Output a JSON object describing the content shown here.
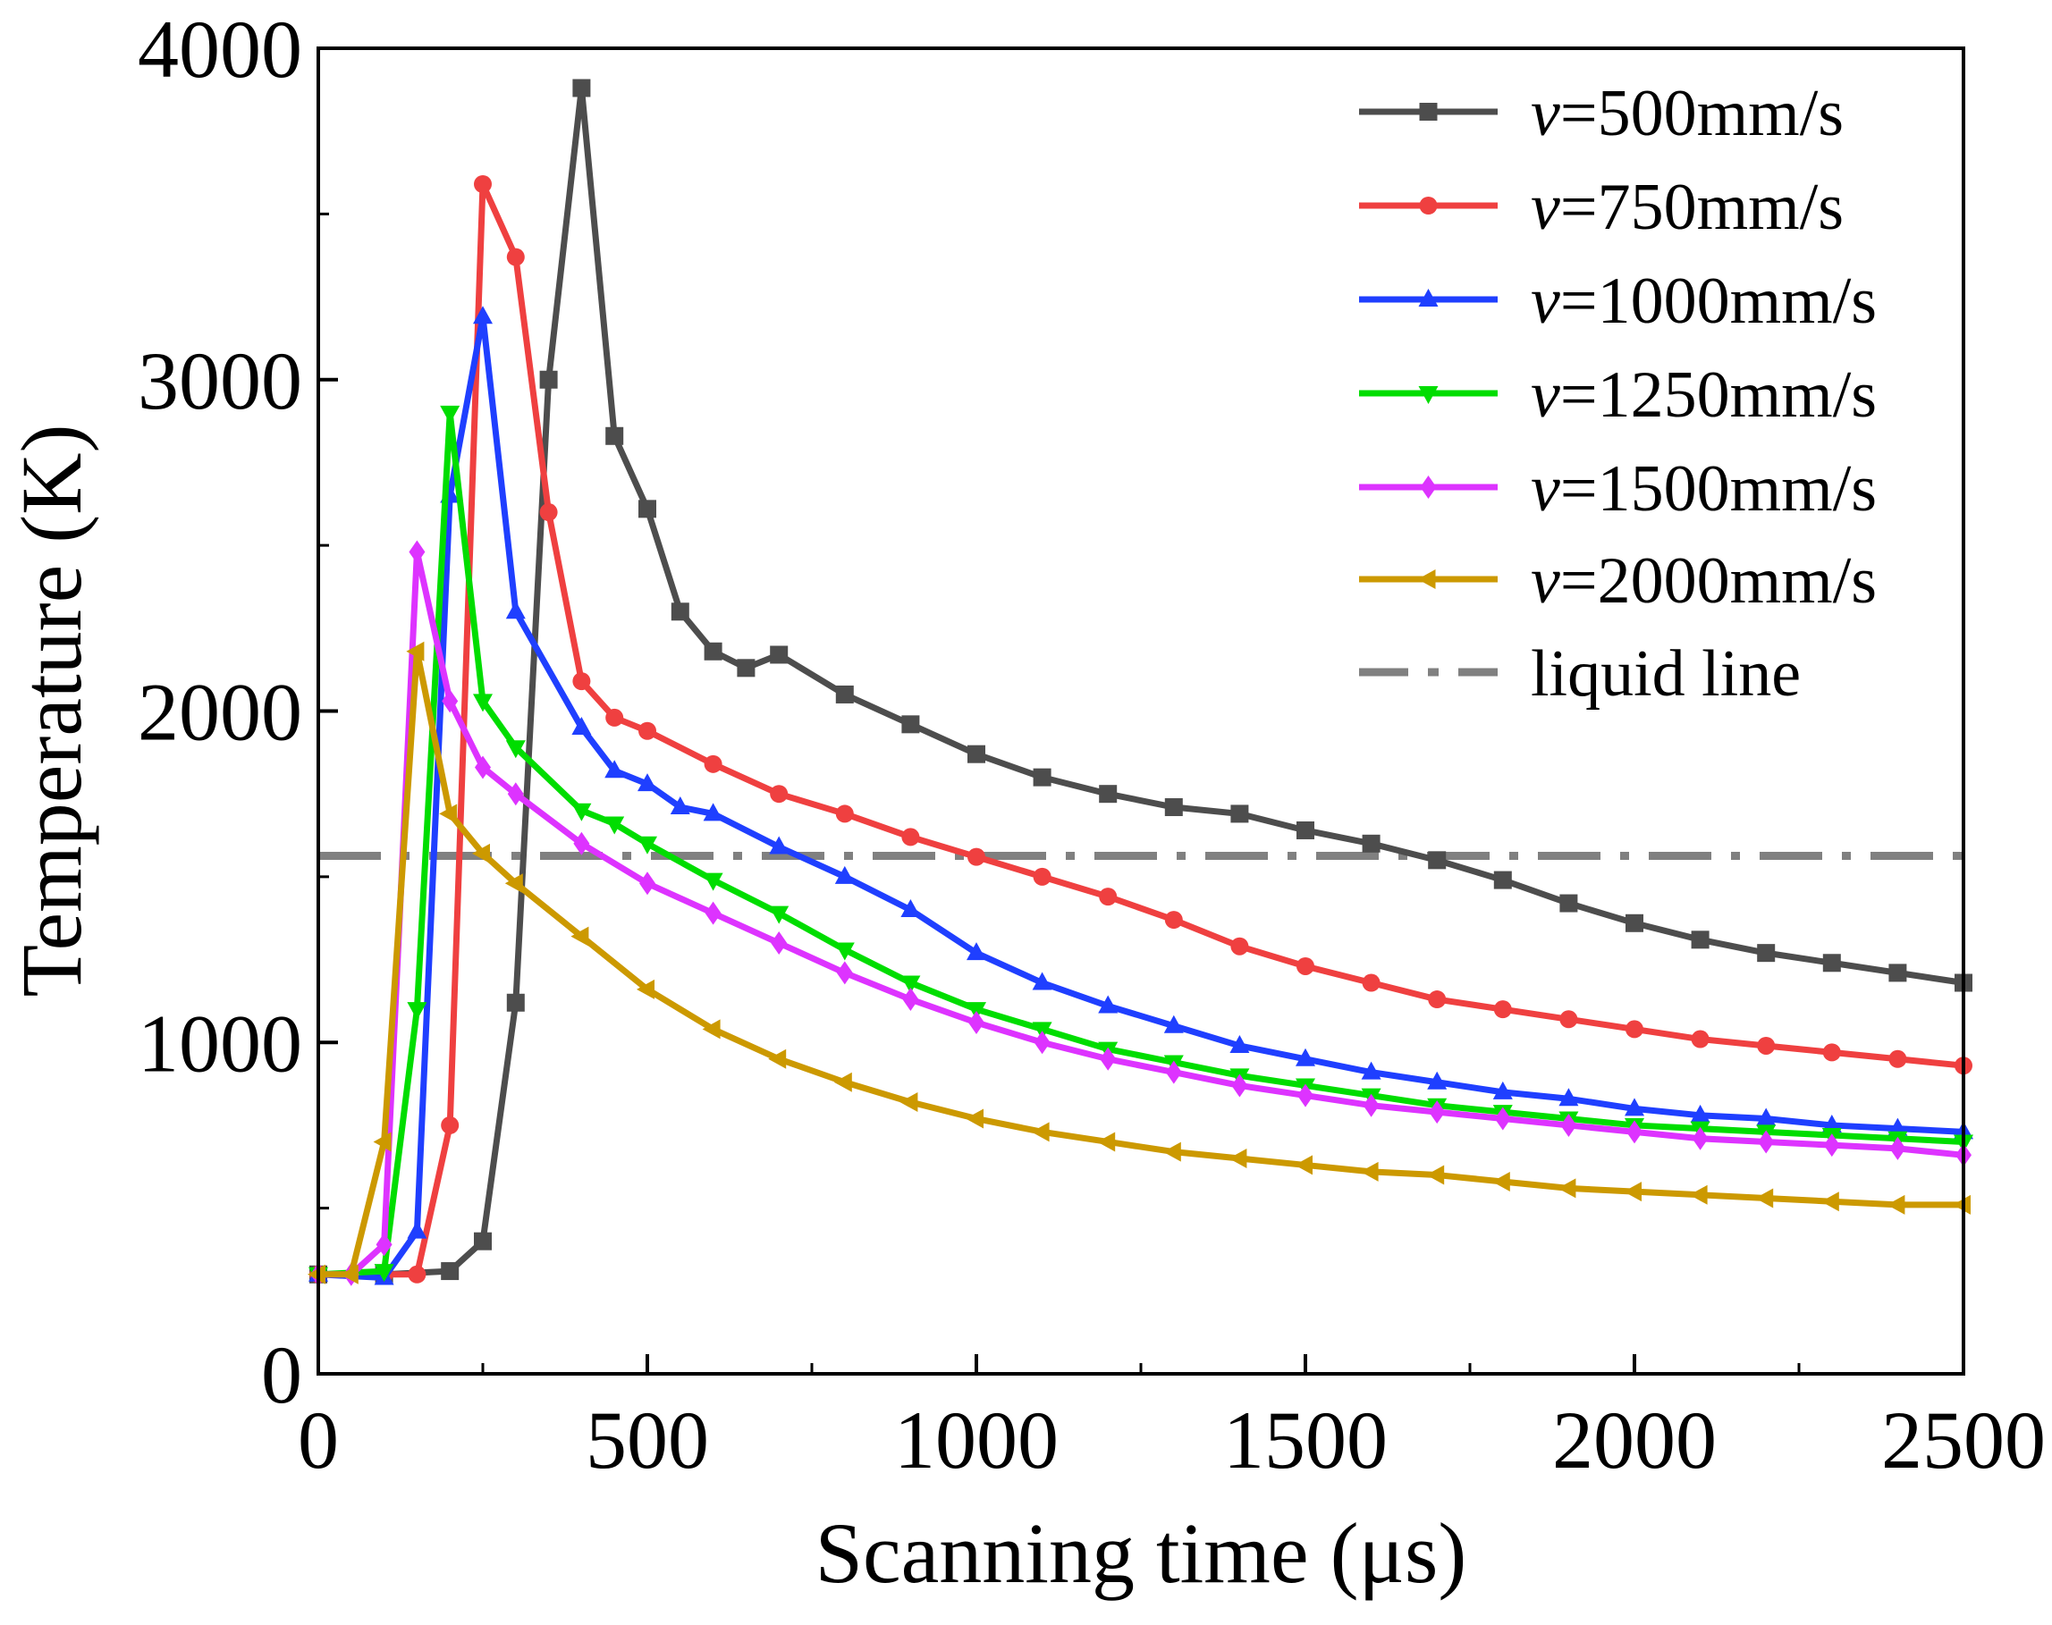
{
  "chart_data": {
    "type": "line",
    "title": "",
    "xlabel": "Scanning time (μs)",
    "ylabel": "Temperature (K)",
    "xlim": [
      0,
      2500
    ],
    "ylim": [
      0,
      4000
    ],
    "xticks": [
      "0",
      "500",
      "1000",
      "1500",
      "2000",
      "2500"
    ],
    "yticks": [
      "0",
      "1000",
      "2000",
      "3000",
      "4000"
    ],
    "grid": false,
    "legend_position": "top-right",
    "series": [
      {
        "name": "v=500mm/s",
        "prefix": "v",
        "suffix": "=500mm/s",
        "color": "#4d4d4d",
        "marker": "square",
        "x": [
          0,
          100,
          200,
          250,
          300,
          350,
          400,
          450,
          500,
          550,
          600,
          650,
          700,
          800,
          900,
          1000,
          1100,
          1200,
          1300,
          1400,
          1500,
          1600,
          1700,
          1800,
          1900,
          2000,
          2100,
          2200,
          2300,
          2400,
          2500
        ],
        "y": [
          300,
          300,
          310,
          400,
          1120,
          3000,
          3880,
          2830,
          2610,
          2300,
          2180,
          2130,
          2170,
          2050,
          1960,
          1870,
          1800,
          1750,
          1710,
          1690,
          1640,
          1600,
          1550,
          1490,
          1420,
          1360,
          1310,
          1270,
          1240,
          1210,
          1180
        ]
      },
      {
        "name": "v=750mm/s",
        "prefix": "v",
        "suffix": "=750mm/s",
        "color": "#ef4040",
        "marker": "circle",
        "x": [
          0,
          100,
          150,
          200,
          250,
          300,
          350,
          400,
          450,
          500,
          600,
          700,
          800,
          900,
          1000,
          1100,
          1200,
          1300,
          1400,
          1500,
          1600,
          1700,
          1800,
          1900,
          2000,
          2100,
          2200,
          2300,
          2400,
          2500
        ],
        "y": [
          300,
          300,
          300,
          750,
          3590,
          3370,
          2600,
          2090,
          1980,
          1940,
          1840,
          1750,
          1690,
          1620,
          1560,
          1500,
          1440,
          1370,
          1290,
          1230,
          1180,
          1130,
          1100,
          1070,
          1040,
          1010,
          990,
          970,
          950,
          930
        ]
      },
      {
        "name": "v=1000mm/s",
        "prefix": "v",
        "suffix": "=1000mm/s",
        "color": "#1f3fff",
        "marker": "triangle-up",
        "x": [
          0,
          100,
          150,
          200,
          250,
          300,
          400,
          450,
          500,
          550,
          600,
          700,
          800,
          900,
          1000,
          1100,
          1200,
          1300,
          1400,
          1500,
          1600,
          1700,
          1800,
          1900,
          2000,
          2100,
          2200,
          2300,
          2400,
          2500
        ],
        "y": [
          300,
          290,
          430,
          2650,
          3190,
          2300,
          1950,
          1820,
          1780,
          1710,
          1690,
          1590,
          1500,
          1400,
          1270,
          1180,
          1110,
          1050,
          990,
          950,
          910,
          880,
          850,
          830,
          800,
          780,
          770,
          750,
          740,
          730
        ]
      },
      {
        "name": "v=1250mm/s",
        "prefix": "v",
        "suffix": "=1250mm/s",
        "color": "#00dd00",
        "marker": "triangle-down",
        "x": [
          0,
          100,
          150,
          200,
          250,
          300,
          400,
          450,
          500,
          600,
          700,
          800,
          900,
          1000,
          1100,
          1200,
          1300,
          1400,
          1500,
          1600,
          1700,
          1800,
          1900,
          2000,
          2100,
          2200,
          2300,
          2400,
          2500
        ],
        "y": [
          300,
          310,
          1100,
          2900,
          2030,
          1890,
          1700,
          1660,
          1600,
          1490,
          1390,
          1280,
          1180,
          1100,
          1040,
          980,
          940,
          900,
          870,
          840,
          810,
          790,
          770,
          750,
          740,
          730,
          720,
          710,
          700
        ]
      },
      {
        "name": "v=1500mm/s",
        "prefix": "v",
        "suffix": "=1500mm/s",
        "color": "#dd33ff",
        "marker": "diamond",
        "x": [
          0,
          50,
          100,
          150,
          200,
          250,
          300,
          400,
          500,
          600,
          700,
          800,
          900,
          1000,
          1100,
          1200,
          1300,
          1400,
          1500,
          1600,
          1700,
          1800,
          1900,
          2000,
          2100,
          2200,
          2300,
          2400,
          2500
        ],
        "y": [
          300,
          300,
          390,
          2480,
          2030,
          1830,
          1750,
          1600,
          1480,
          1390,
          1300,
          1210,
          1130,
          1060,
          1000,
          950,
          910,
          870,
          840,
          810,
          790,
          770,
          750,
          730,
          710,
          700,
          690,
          680,
          660
        ]
      },
      {
        "name": "v=2000mm/s",
        "prefix": "v",
        "suffix": "=2000mm/s",
        "color": "#cc9900",
        "marker": "triangle-left",
        "x": [
          0,
          50,
          100,
          150,
          200,
          250,
          300,
          400,
          500,
          600,
          700,
          800,
          900,
          1000,
          1100,
          1200,
          1300,
          1400,
          1500,
          1600,
          1700,
          1800,
          1900,
          2000,
          2100,
          2200,
          2300,
          2400,
          2500
        ],
        "y": [
          300,
          300,
          700,
          2180,
          1690,
          1570,
          1480,
          1320,
          1160,
          1040,
          950,
          880,
          820,
          770,
          730,
          700,
          670,
          650,
          630,
          610,
          600,
          580,
          560,
          550,
          540,
          530,
          520,
          510,
          510
        ]
      }
    ],
    "reference_lines": [
      {
        "name": "liquid line",
        "y": 1563,
        "color": "#808080",
        "style": "dash-dot"
      }
    ]
  }
}
